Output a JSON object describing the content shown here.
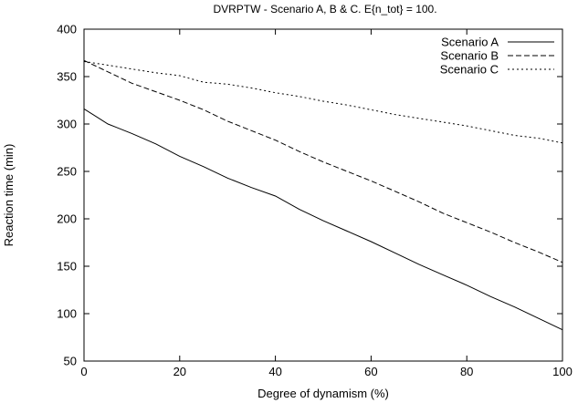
{
  "chart_data": {
    "type": "line",
    "title": "DVRPTW - Scenario A, B & C. E{n_tot} = 100.",
    "xlabel": "Degree of dynamism (%)",
    "ylabel": "Reaction time (min)",
    "xlim": [
      0,
      100
    ],
    "ylim": [
      50,
      400
    ],
    "x_ticks": [
      0,
      20,
      40,
      60,
      80,
      100
    ],
    "y_ticks": [
      50,
      100,
      150,
      200,
      250,
      300,
      350,
      400
    ],
    "grid": false,
    "legend_position": "top-right",
    "x": [
      0,
      5,
      10,
      15,
      20,
      25,
      30,
      35,
      40,
      45,
      50,
      55,
      60,
      65,
      70,
      75,
      80,
      85,
      90,
      95,
      100
    ],
    "series": [
      {
        "name": "Scenario A",
        "style": "solid",
        "values": [
          316,
          300,
          290,
          279,
          266,
          255,
          243,
          233,
          224,
          210,
          198,
          187,
          176,
          164,
          152,
          141,
          130,
          118,
          107,
          95,
          83
        ]
      },
      {
        "name": "Scenario B",
        "style": "dashed",
        "values": [
          367,
          355,
          343,
          334,
          325,
          315,
          303,
          293,
          283,
          271,
          260,
          250,
          240,
          229,
          218,
          206,
          196,
          186,
          175,
          165,
          154
        ]
      },
      {
        "name": "Scenario C",
        "style": "dotted",
        "values": [
          366,
          362,
          358,
          354,
          351,
          344,
          342,
          338,
          333,
          329,
          324,
          320,
          315,
          310,
          306,
          302,
          298,
          293,
          288,
          285,
          280
        ]
      }
    ]
  }
}
